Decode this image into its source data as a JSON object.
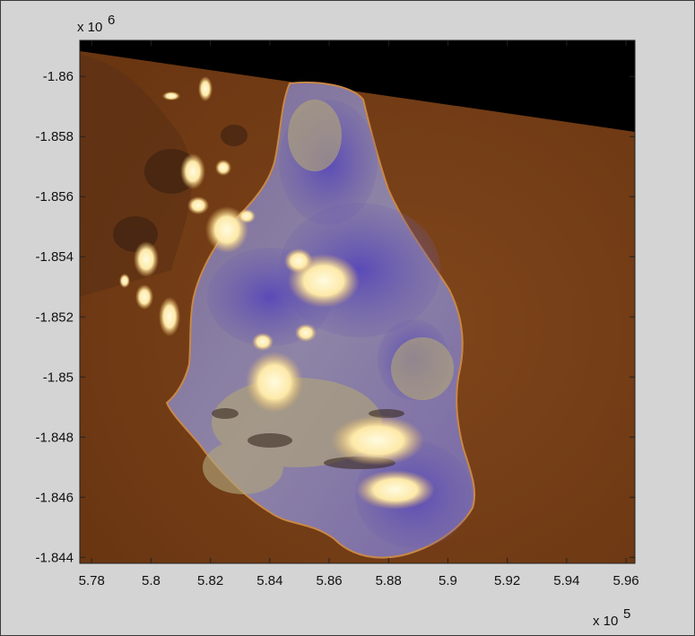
{
  "chart_data": {
    "type": "heatmap",
    "title": "",
    "xlabel": "",
    "ylabel": "",
    "x_exponent": "x 10",
    "x_exponent_power": "5",
    "y_exponent": "x 10",
    "y_exponent_power": "6",
    "xlim": [
      5.776,
      5.963
    ],
    "ylim": [
      -1.8612,
      -1.8438
    ],
    "y_reversed": true,
    "grid": false,
    "x_ticks": [
      5.78,
      5.8,
      5.82,
      5.84,
      5.86,
      5.88,
      5.9,
      5.92,
      5.94,
      5.96
    ],
    "x_tick_labels": [
      "5.78",
      "5.8",
      "5.82",
      "5.84",
      "5.86",
      "5.88",
      "5.9",
      "5.92",
      "5.94",
      "5.96"
    ],
    "y_ticks": [
      -1.86,
      -1.858,
      -1.856,
      -1.854,
      -1.852,
      -1.85,
      -1.848,
      -1.846,
      -1.844
    ],
    "y_tick_labels": [
      "-1.86",
      "-1.858",
      "-1.856",
      "-1.854",
      "-1.852",
      "-1.85",
      "-1.848",
      "-1.846",
      "-1.844"
    ],
    "image_content": "false-color satellite image of an island with clouds",
    "colors": {
      "sea": "#7a4118",
      "no_data": "#000000",
      "vegetation": "#6a58b0",
      "bare_ground": "#a49a74",
      "cloud": "#fff0b8",
      "background": "#d4d4d4"
    }
  }
}
